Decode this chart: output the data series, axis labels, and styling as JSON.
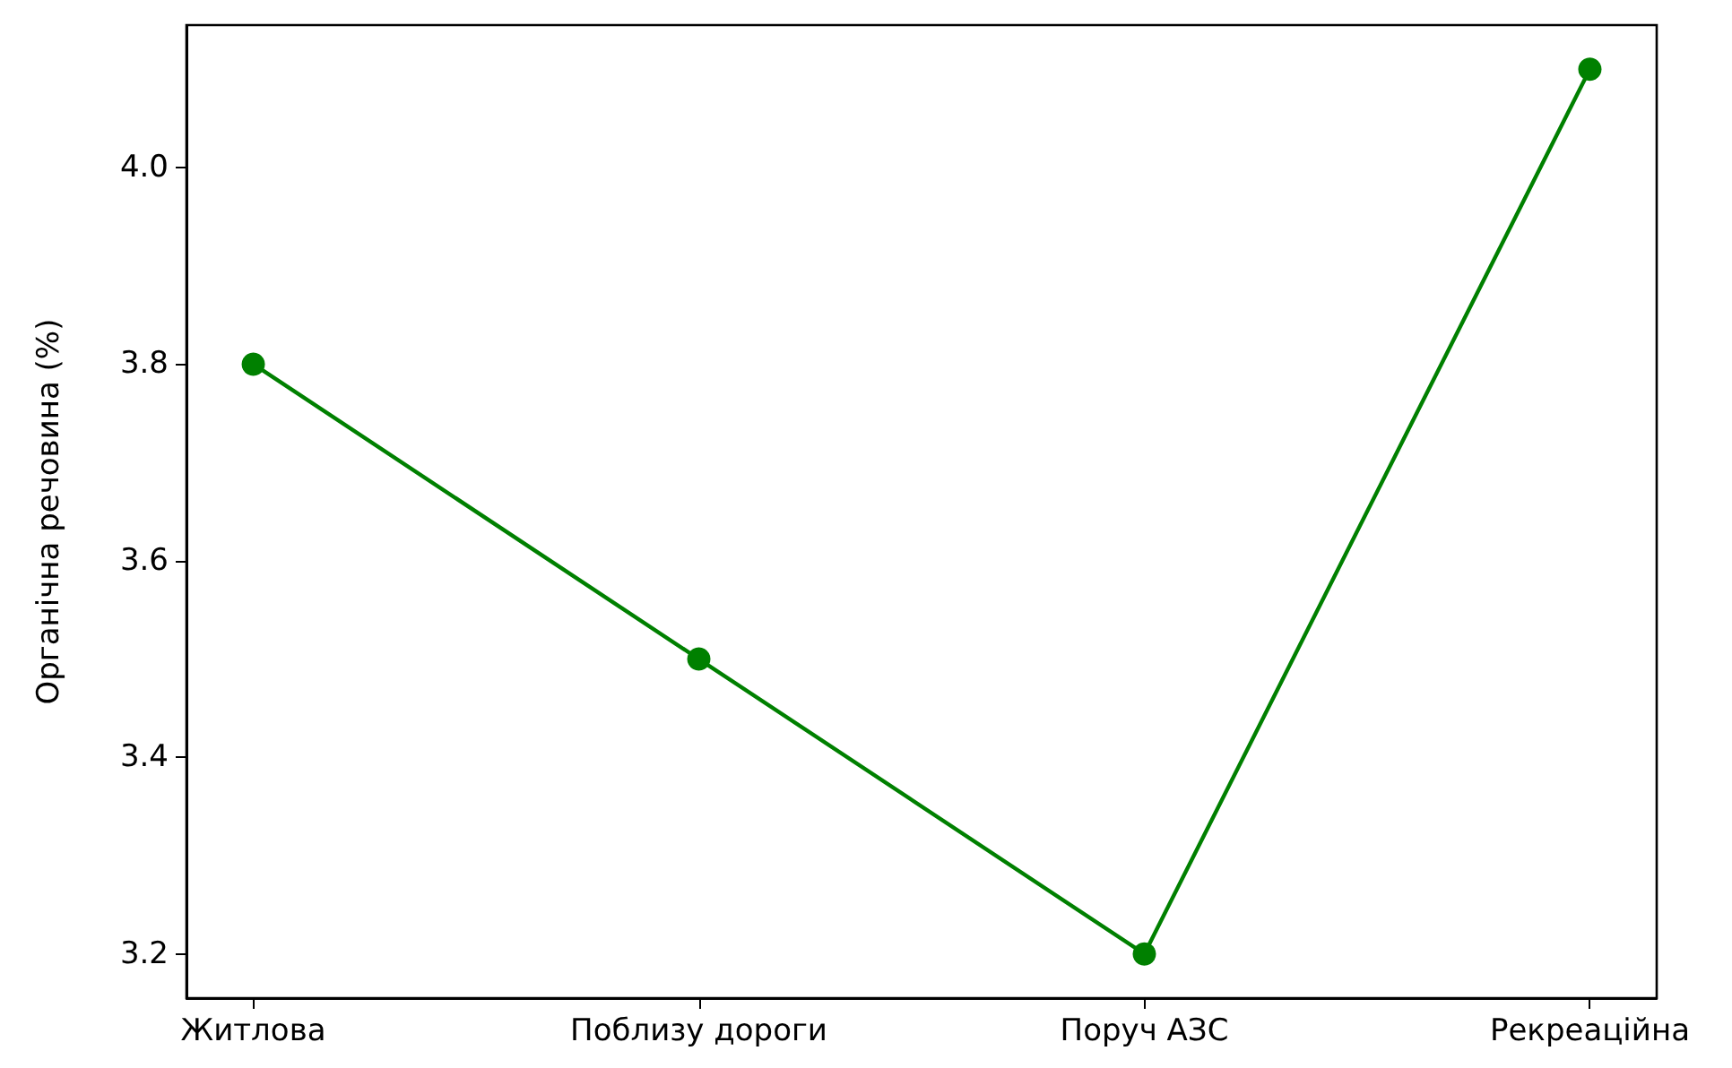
{
  "chart_data": {
    "type": "line",
    "ylabel": "Органічна речовина (%)",
    "categories": [
      "Житлова",
      "Поблизу дороги",
      "Поруч АЗС",
      "Рекреаційна"
    ],
    "series": [
      {
        "color": "#008000",
        "values": [
          3.8,
          3.5,
          3.2,
          4.1
        ]
      }
    ],
    "ylim": [
      3.155,
      4.145
    ],
    "yticks": [
      3.2,
      3.4,
      3.6,
      3.8,
      {
        "value": 4,
        "label": "4.0"
      }
    ],
    "marker": "circle",
    "line_style": "solid",
    "grid": false
  }
}
